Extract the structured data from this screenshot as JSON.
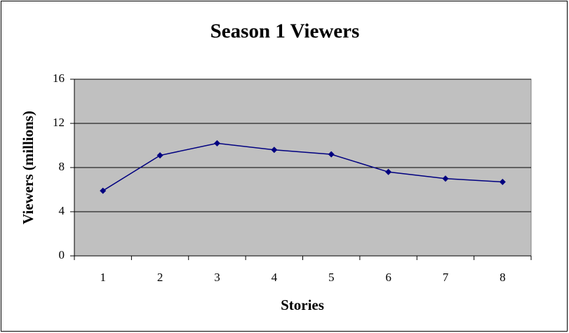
{
  "chart_data": {
    "type": "line",
    "title": "Season 1 Viewers",
    "x_label": "Stories",
    "y_label": "Viewers (millions)",
    "categories": [
      "1",
      "2",
      "3",
      "4",
      "5",
      "6",
      "7",
      "8"
    ],
    "values": [
      5.9,
      9.1,
      10.2,
      9.6,
      9.2,
      7.6,
      7.0,
      6.7
    ],
    "color": "#000080",
    "plot_background": "#c0c0c0",
    "ylim": [
      0,
      16
    ],
    "yticks": [
      0,
      4,
      8,
      12,
      16
    ],
    "grid": true
  }
}
